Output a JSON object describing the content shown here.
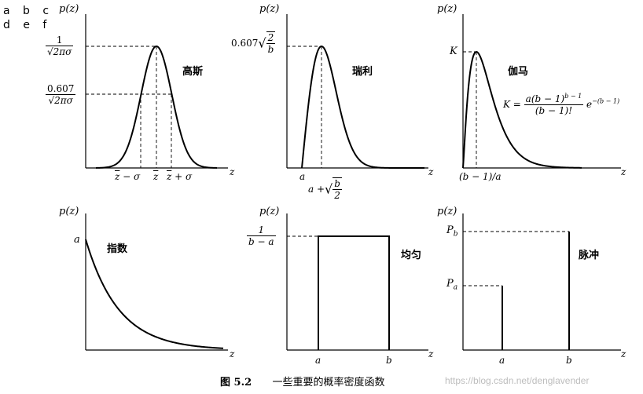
{
  "panel_letters": {
    "row1": "a b c",
    "row2": "d e f"
  },
  "panels": [
    {
      "id": "gaussian",
      "name": "高斯",
      "ylabel": "p(z)",
      "xlabel": "z",
      "y_ticks": [
        "1/√(2π)σ",
        "0.607/√(2π)σ"
      ],
      "x_ticks": [
        "z̄ − σ",
        "z̄",
        "z̄ + σ"
      ]
    },
    {
      "id": "rayleigh",
      "name": "瑞利",
      "ylabel": "p(z)",
      "xlabel": "z",
      "y_ticks": [
        "0.607√(2/b)"
      ],
      "x_ticks": [
        "a",
        "a + √(b/2)"
      ]
    },
    {
      "id": "gamma",
      "name": "伽马",
      "ylabel": "p(z)",
      "xlabel": "z",
      "y_ticks": [
        "K"
      ],
      "x_ticks": [
        "(b − 1)/a"
      ],
      "formula": "K = a(b − 1)^(b−1) / (b − 1)! · e^−(b−1)"
    },
    {
      "id": "exponential",
      "name": "指数",
      "ylabel": "p(z)",
      "xlabel": "z",
      "y_ticks": [
        "a"
      ],
      "x_ticks": []
    },
    {
      "id": "uniform",
      "name": "均匀",
      "ylabel": "p(z)",
      "xlabel": "z",
      "y_ticks": [
        "1/(b − a)"
      ],
      "x_ticks": [
        "a",
        "b"
      ]
    },
    {
      "id": "impulse",
      "name": "脉冲",
      "ylabel": "p(z)",
      "xlabel": "z",
      "y_ticks": [
        "Pb",
        "Pa"
      ],
      "x_ticks": [
        "a",
        "b"
      ]
    }
  ],
  "text": {
    "gaussian_y1_num": "1",
    "gaussian_y1_den": "√2πσ",
    "gaussian_y2_num": "0.607",
    "gaussian_y2_den": "√2πσ",
    "rayleigh_y_coef": "0.607",
    "rayleigh_frac_num": "2",
    "rayleigh_frac_den": "b",
    "rayleigh_x_a": "a",
    "rayleigh_x2_prefix": "a +",
    "rayleigh_x2_num": "b",
    "rayleigh_x2_den": "2",
    "gamma_K": "K",
    "gamma_x": "(b − 1)/a",
    "gamma_formula_lhs": "K =",
    "gamma_formula_num": "a(b − 1)",
    "gamma_formula_num_exp": "b − 1",
    "gamma_formula_den": "(b − 1)!",
    "gamma_formula_e": "e",
    "gamma_formula_e_exp": "−(b − 1)",
    "exp_y": "a",
    "uni_y_num": "1",
    "uni_y_den": "b − a",
    "uni_x_a": "a",
    "uni_x_b": "b",
    "imp_Pb": "P",
    "imp_Pb_sub": "b",
    "imp_Pa": "P",
    "imp_Pa_sub": "a",
    "imp_x_a": "a",
    "imp_x_b": "b",
    "p_of_z": "p(z)",
    "z": "z",
    "zbar_minus": " − σ",
    "zbar_plus": " + σ",
    "zbar": "z"
  },
  "caption": {
    "number": "图 5.2",
    "title": "一些重要的概率密度函数"
  },
  "watermark": "https://blog.csdn.net/denglavender"
}
